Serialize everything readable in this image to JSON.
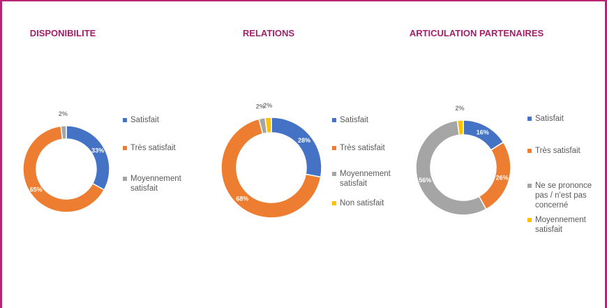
{
  "chart_data": [
    {
      "type": "donut",
      "title": "DISPONIBILITE",
      "categories": [
        "Satisfait",
        "Très satisfait",
        "Moyennement satisfait"
      ],
      "values": [
        33,
        65,
        2
      ],
      "value_labels": [
        "33%",
        "65%",
        "2%"
      ],
      "colors": [
        "#4472c4",
        "#ed7d31",
        "#a5a5a5"
      ]
    },
    {
      "type": "donut",
      "title": "RELATIONS",
      "categories": [
        "Satisfait",
        "Très satisfait",
        "Moyennement satisfait",
        "Non satisfait"
      ],
      "values": [
        28,
        68,
        2,
        2
      ],
      "value_labels": [
        "28%",
        "68%",
        "2%",
        "2%"
      ],
      "colors": [
        "#4472c4",
        "#ed7d31",
        "#a5a5a5",
        "#ffc000"
      ]
    },
    {
      "type": "donut",
      "title": "ARTICULATION PARTENAIRES",
      "categories": [
        "Satisfait",
        "Très satisfait",
        "Ne se prononce pas / n'est pas concerné",
        "Moyennement satisfait"
      ],
      "values": [
        16,
        26,
        56,
        2
      ],
      "value_labels": [
        "16%",
        "26%",
        "56%",
        "2%"
      ],
      "colors": [
        "#4472c4",
        "#ed7d31",
        "#a5a5a5",
        "#ffc000"
      ]
    }
  ]
}
